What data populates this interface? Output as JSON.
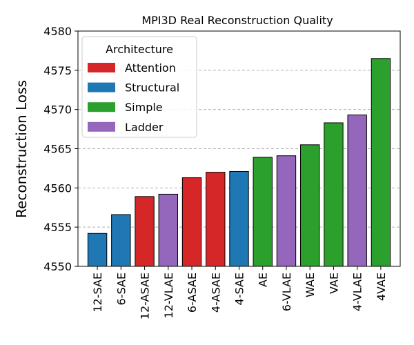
{
  "chart_data": {
    "type": "bar",
    "title": "MPI3D Real Reconstruction Quality",
    "xlabel": "",
    "ylabel": "Reconstruction Loss",
    "ylim": [
      4550,
      4580
    ],
    "yticks": [
      4550,
      4555,
      4560,
      4565,
      4570,
      4575,
      4580
    ],
    "grid": "y-dashed",
    "legend": {
      "title": "Architecture",
      "placement": "top-left",
      "entries": [
        {
          "label": "Attention",
          "color": "#d62728"
        },
        {
          "label": "Structural",
          "color": "#1f77b4"
        },
        {
          "label": "Simple",
          "color": "#2ca02c"
        },
        {
          "label": "Ladder",
          "color": "#9467bd"
        }
      ]
    },
    "categories": [
      "12-SAE",
      "6-SAE",
      "12-ASAE",
      "12-VLAE",
      "6-ASAE",
      "4-ASAE",
      "4-SAE",
      "AE",
      "6-VLAE",
      "WAE",
      "VAE",
      "4-VLAE",
      "4VAE"
    ],
    "values": [
      4554.2,
      4556.6,
      4558.9,
      4559.2,
      4561.3,
      4562.0,
      4562.1,
      4563.9,
      4564.1,
      4565.5,
      4568.3,
      4569.3,
      4576.5
    ],
    "groups": [
      "Structural",
      "Structural",
      "Attention",
      "Ladder",
      "Attention",
      "Attention",
      "Structural",
      "Simple",
      "Ladder",
      "Simple",
      "Simple",
      "Ladder",
      "Simple"
    ]
  }
}
